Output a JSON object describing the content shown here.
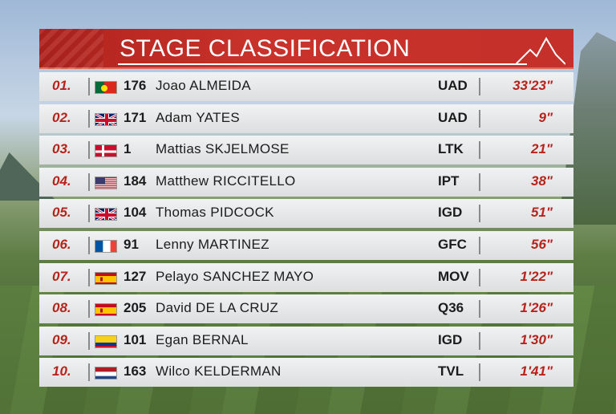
{
  "header": {
    "title": "STAGE CLASSIFICATION"
  },
  "rows": [
    {
      "pos": "01.",
      "flag": "portugal-flag-icon",
      "bib": "176",
      "name": "Joao ALMEIDA",
      "team": "UAD",
      "time": "33'23\""
    },
    {
      "pos": "02.",
      "flag": "uk-flag-icon",
      "bib": "171",
      "name": "Adam YATES",
      "team": "UAD",
      "time": "9\""
    },
    {
      "pos": "03.",
      "flag": "denmark-flag-icon",
      "bib": "1",
      "name": "Mattias SKJELMOSE",
      "team": "LTK",
      "time": "21\""
    },
    {
      "pos": "04.",
      "flag": "usa-flag-icon",
      "bib": "184",
      "name": "Matthew RICCITELLO",
      "team": "IPT",
      "time": "38\""
    },
    {
      "pos": "05.",
      "flag": "uk-flag-icon",
      "bib": "104",
      "name": "Thomas PIDCOCK",
      "team": "IGD",
      "time": "51\""
    },
    {
      "pos": "06.",
      "flag": "france-flag-icon",
      "bib": "91",
      "name": "Lenny MARTINEZ",
      "team": "GFC",
      "time": "56\""
    },
    {
      "pos": "07.",
      "flag": "spain-flag-icon",
      "bib": "127",
      "name": "Pelayo SANCHEZ MAYO",
      "team": "MOV",
      "time": "1'22\""
    },
    {
      "pos": "08.",
      "flag": "spain-flag-icon",
      "bib": "205",
      "name": "David DE LA CRUZ",
      "team": "Q36",
      "time": "1'26\""
    },
    {
      "pos": "09.",
      "flag": "colombia-flag-icon",
      "bib": "101",
      "name": "Egan BERNAL",
      "team": "IGD",
      "time": "1'30\""
    },
    {
      "pos": "10.",
      "flag": "netherlands-flag-icon",
      "bib": "163",
      "name": "Wilco KELDERMAN",
      "team": "TVL",
      "time": "1'41\""
    }
  ],
  "colors": {
    "accent": "#c8322a",
    "position_text": "#b8231c",
    "row_bg": "#e6e8e9"
  }
}
